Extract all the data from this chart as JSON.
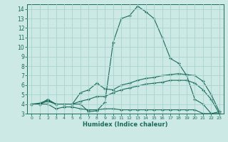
{
  "xlabel": "Humidex (Indice chaleur)",
  "bg_color": "#cce9e5",
  "grid_color": "#aad4cf",
  "line_color": "#1a6b5a",
  "xlim": [
    -0.5,
    23.5
  ],
  "ylim": [
    3,
    14.5
  ],
  "xticks": [
    0,
    1,
    2,
    3,
    4,
    5,
    6,
    7,
    8,
    9,
    10,
    11,
    12,
    13,
    14,
    15,
    16,
    17,
    18,
    19,
    20,
    21,
    22,
    23
  ],
  "yticks": [
    3,
    4,
    5,
    6,
    7,
    8,
    9,
    10,
    11,
    12,
    13,
    14
  ],
  "curve1_x": [
    0,
    1,
    2,
    3,
    4,
    5,
    6,
    7,
    8,
    9,
    10,
    11,
    12,
    13,
    14,
    15,
    16,
    17,
    18,
    19,
    20,
    21,
    22,
    23
  ],
  "curve1_y": [
    4.0,
    4.1,
    4.4,
    4.0,
    4.0,
    4.0,
    4.0,
    3.2,
    3.3,
    4.2,
    10.5,
    13.0,
    13.3,
    14.3,
    13.7,
    13.0,
    11.0,
    8.8,
    8.3,
    7.0,
    4.5,
    4.0,
    3.0,
    3.2
  ],
  "curve2_x": [
    0,
    1,
    2,
    3,
    4,
    5,
    6,
    7,
    8,
    9,
    10,
    11,
    12,
    13,
    14,
    15,
    16,
    17,
    18,
    19,
    20,
    21,
    22,
    23
  ],
  "curve2_y": [
    4.0,
    4.0,
    4.5,
    4.0,
    4.0,
    4.0,
    5.2,
    5.5,
    6.2,
    5.6,
    5.5,
    6.0,
    6.2,
    6.5,
    6.7,
    6.8,
    7.0,
    7.1,
    7.2,
    7.1,
    7.0,
    6.4,
    5.0,
    3.2
  ],
  "curve3_x": [
    0,
    1,
    2,
    3,
    4,
    5,
    6,
    7,
    8,
    9,
    10,
    11,
    12,
    13,
    14,
    15,
    16,
    17,
    18,
    19,
    20,
    21,
    22,
    23
  ],
  "curve3_y": [
    4.0,
    4.0,
    4.3,
    4.0,
    4.0,
    4.0,
    4.3,
    4.5,
    4.8,
    4.8,
    5.2,
    5.5,
    5.7,
    5.9,
    6.1,
    6.2,
    6.3,
    6.5,
    6.5,
    6.5,
    6.2,
    5.5,
    4.5,
    3.0
  ],
  "curve4_x": [
    0,
    1,
    2,
    3,
    4,
    5,
    6,
    7,
    8,
    9,
    10,
    11,
    12,
    13,
    14,
    15,
    16,
    17,
    18,
    19,
    20,
    21,
    22,
    23
  ],
  "curve4_y": [
    4.0,
    4.0,
    4.0,
    3.5,
    3.7,
    3.7,
    3.5,
    3.4,
    3.4,
    3.5,
    3.5,
    3.4,
    3.4,
    3.4,
    3.4,
    3.4,
    3.4,
    3.4,
    3.4,
    3.4,
    3.4,
    3.0,
    3.0,
    3.0
  ]
}
